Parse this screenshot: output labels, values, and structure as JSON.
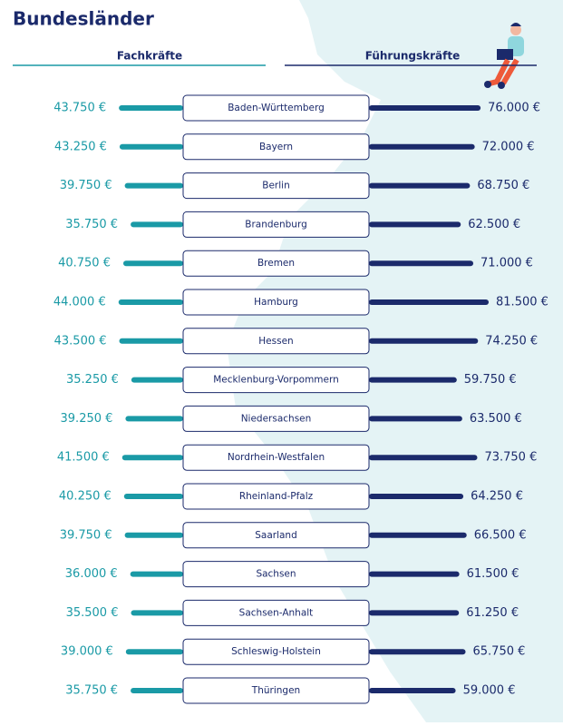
{
  "chart_data": {
    "type": "butterfly",
    "title": "Bundesländer",
    "categories": [
      "Baden-Württemberg",
      "Bayern",
      "Berlin",
      "Brandenburg",
      "Bremen",
      "Hamburg",
      "Hessen",
      "Mecklenburg-Vorpommern",
      "Niedersachsen",
      "Nordrhein-Westfalen",
      "Rheinland-Pfalz",
      "Saarland",
      "Sachsen",
      "Sachsen-Anhalt",
      "Schleswig-Holstein",
      "Thüringen"
    ],
    "series": [
      {
        "name": "Fachkräfte",
        "color": "#1a9aa6",
        "values": [
          43750,
          43250,
          39750,
          35750,
          40750,
          44000,
          43500,
          35250,
          39250,
          41500,
          40250,
          39750,
          36000,
          35500,
          39000,
          35750
        ],
        "value_labels": [
          "43.750 €",
          "43.250 €",
          "39.750 €",
          "35.750 €",
          "40.750 €",
          "44.000 €",
          "43.500 €",
          "35.250 €",
          "39.250 €",
          "41.500 €",
          "40.250 €",
          "39.750 €",
          "36.000 €",
          "35.500 €",
          "39.000 €",
          "35.750 €"
        ]
      },
      {
        "name": "Führungskräfte",
        "color": "#1b2a6b",
        "values": [
          76000,
          72000,
          68750,
          62500,
          71000,
          81500,
          74250,
          59750,
          63500,
          73750,
          64250,
          66500,
          61500,
          61250,
          65750,
          59000
        ],
        "value_labels": [
          "76.000 €",
          "72.000 €",
          "68.750 €",
          "62.500 €",
          "71.000 €",
          "81.500 €",
          "74.250 €",
          "59.750 €",
          "63.500 €",
          "73.750 €",
          "64.250 €",
          "66.500 €",
          "61.500 €",
          "61.250 €",
          "65.750 €",
          "59.000 €"
        ]
      }
    ]
  }
}
